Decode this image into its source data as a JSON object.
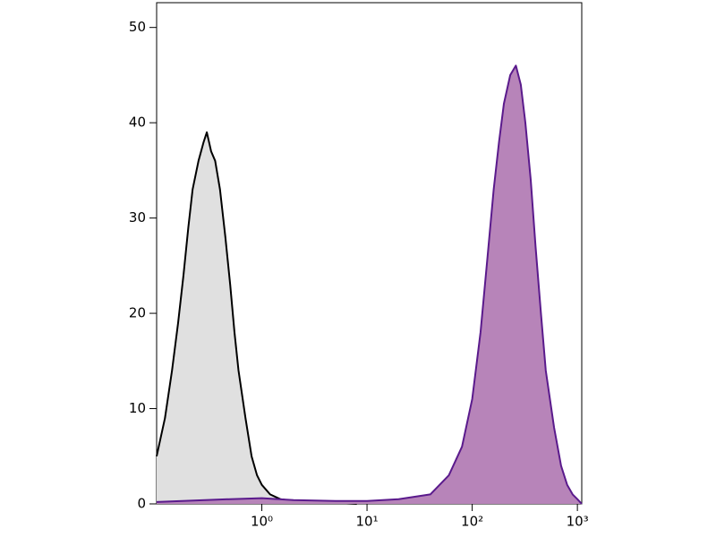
{
  "chart_data": {
    "type": "area",
    "xscale": "log",
    "xlim": [
      0.1,
      1100
    ],
    "ylim": [
      0,
      52.6
    ],
    "xticks": [
      {
        "value": 1,
        "label": "10⁰"
      },
      {
        "value": 10,
        "label": "10¹"
      },
      {
        "value": 100,
        "label": "10²"
      },
      {
        "value": 1000,
        "label": "10³"
      }
    ],
    "yticks": [
      0,
      10,
      20,
      30,
      40,
      50
    ],
    "grid": false,
    "series": [
      {
        "color": "#000000",
        "fill": "#e0e0e0",
        "x": [
          0.1,
          0.12,
          0.14,
          0.16,
          0.18,
          0.2,
          0.22,
          0.25,
          0.28,
          0.3,
          0.33,
          0.36,
          0.4,
          0.45,
          0.5,
          0.55,
          0.6,
          0.7,
          0.8,
          0.9,
          1.0,
          1.2,
          1.5,
          2,
          3,
          5,
          8
        ],
        "values": [
          5,
          9,
          14,
          19,
          24,
          29,
          33,
          36,
          38,
          39,
          37,
          36,
          33,
          28,
          23,
          18,
          14,
          9,
          5,
          3,
          2,
          1,
          0.5,
          0.3,
          0.2,
          0.1,
          0
        ]
      },
      {
        "color": "#5a1a8c",
        "fill": "#b784b9",
        "x": [
          0.1,
          0.5,
          1,
          2,
          5,
          10,
          20,
          40,
          60,
          80,
          100,
          120,
          140,
          160,
          180,
          200,
          230,
          260,
          290,
          320,
          360,
          400,
          450,
          500,
          600,
          700,
          800,
          900,
          1000,
          1100
        ],
        "values": [
          0.2,
          0.5,
          0.6,
          0.4,
          0.3,
          0.3,
          0.5,
          1,
          3,
          6,
          11,
          18,
          26,
          33,
          38,
          42,
          45,
          46,
          44,
          40,
          34,
          27,
          20,
          14,
          8,
          4,
          2,
          1,
          0.5,
          0
        ]
      }
    ]
  }
}
